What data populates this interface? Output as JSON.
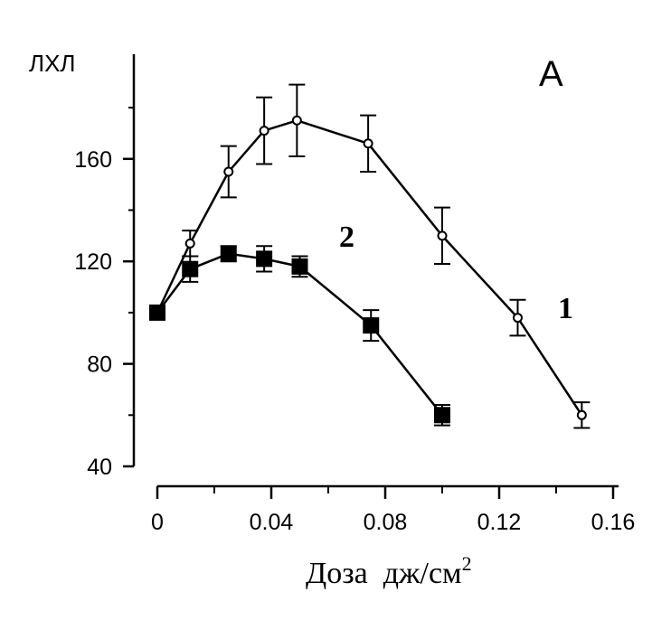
{
  "chart_data": {
    "type": "line",
    "panel_label": "А",
    "ylabel": "ЛХЛ",
    "xlabel": "Доза  дж/см",
    "xlabel_sup": "2",
    "xlim": [
      0,
      0.16
    ],
    "ylim": [
      40,
      190
    ],
    "x_ticks": [
      0,
      0.04,
      0.08,
      0.12,
      0.16
    ],
    "x_tick_labels": [
      "0",
      "0.04",
      "0.08",
      "0.12",
      "0.16"
    ],
    "y_ticks": [
      40,
      80,
      120,
      160
    ],
    "y_tick_labels": [
      "40",
      "80",
      "120",
      "160"
    ],
    "grid": false,
    "series": [
      {
        "name": "1",
        "marker": "open-circle",
        "x": [
          0,
          0.0115,
          0.025,
          0.0375,
          0.049,
          0.074,
          0.1,
          0.1265,
          0.149
        ],
        "y": [
          100,
          127,
          155,
          171,
          175,
          166,
          130,
          98,
          60
        ],
        "err": [
          0,
          5,
          10,
          13,
          14,
          11,
          11,
          7,
          5
        ]
      },
      {
        "name": "2",
        "marker": "filled-square",
        "x": [
          0,
          0.0115,
          0.025,
          0.0375,
          0.05,
          0.075,
          0.1
        ],
        "y": [
          100,
          117,
          123,
          121,
          118,
          95,
          60
        ],
        "err": [
          0,
          5,
          3,
          5,
          4,
          6,
          4
        ]
      }
    ]
  }
}
